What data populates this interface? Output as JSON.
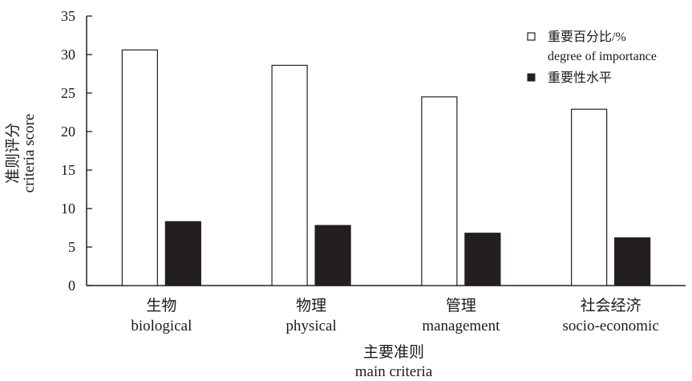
{
  "chart_data": {
    "type": "bar",
    "title": "",
    "categories": [
      {
        "zh": "生物",
        "en": "biological"
      },
      {
        "zh": "物理",
        "en": "physical"
      },
      {
        "zh": "管理",
        "en": "management"
      },
      {
        "zh": "社会经济",
        "en": "socio-economic"
      }
    ],
    "series": [
      {
        "name_zh": "重要百分比/%",
        "name_en": "degree of importance",
        "color": "#ffffff",
        "values": [
          30.6,
          28.6,
          24.5,
          22.9
        ]
      },
      {
        "name_zh": "重要性水平",
        "name_en": "",
        "color": "#231f20",
        "values": [
          8.3,
          7.8,
          6.8,
          6.2
        ]
      }
    ],
    "ylabel_zh": "准则评分",
    "ylabel_en": "criteria score",
    "xlabel_zh": "主要准则",
    "xlabel_en": "main criteria",
    "ylim": [
      0,
      35
    ],
    "yticks": [
      0,
      5,
      10,
      15,
      20,
      25,
      30,
      35
    ],
    "grid": false,
    "legend_position": "top-right"
  }
}
